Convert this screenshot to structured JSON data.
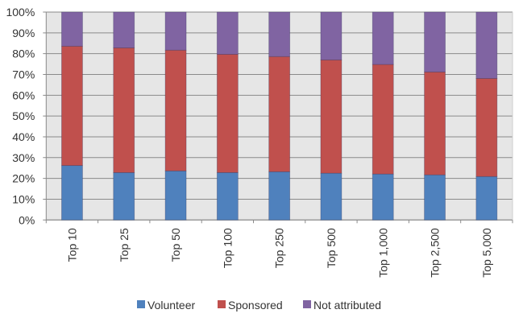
{
  "chart_data": {
    "type": "bar",
    "stacked": true,
    "percent_stacked": true,
    "categories": [
      "Top 10",
      "Top 25",
      "Top 50",
      "Top 100",
      "Top 250",
      "Top 500",
      "Top 1,000",
      "Top 2,500",
      "Top 5,000"
    ],
    "series": [
      {
        "name": "Volunteer",
        "color": "#4F81BD",
        "values": [
          26.2,
          22.8,
          23.6,
          22.8,
          23.2,
          22.5,
          22.1,
          21.7,
          20.9
        ]
      },
      {
        "name": "Sponsored",
        "color": "#C0504D",
        "values": [
          57.4,
          60.0,
          58.1,
          56.9,
          55.4,
          54.5,
          52.7,
          49.5,
          47.2
        ]
      },
      {
        "name": "Not attributed",
        "color": "#8064A2",
        "values": [
          16.4,
          17.2,
          18.3,
          20.3,
          21.4,
          23.0,
          25.2,
          28.8,
          31.9
        ]
      }
    ],
    "yticks": [
      "0%",
      "10%",
      "20%",
      "30%",
      "40%",
      "50%",
      "60%",
      "70%",
      "80%",
      "90%",
      "100%"
    ],
    "ylim": [
      0,
      100
    ],
    "xlabel": "",
    "ylabel": "",
    "grid": true,
    "plot_background": "#E6E6E6",
    "legend": "bottom"
  }
}
